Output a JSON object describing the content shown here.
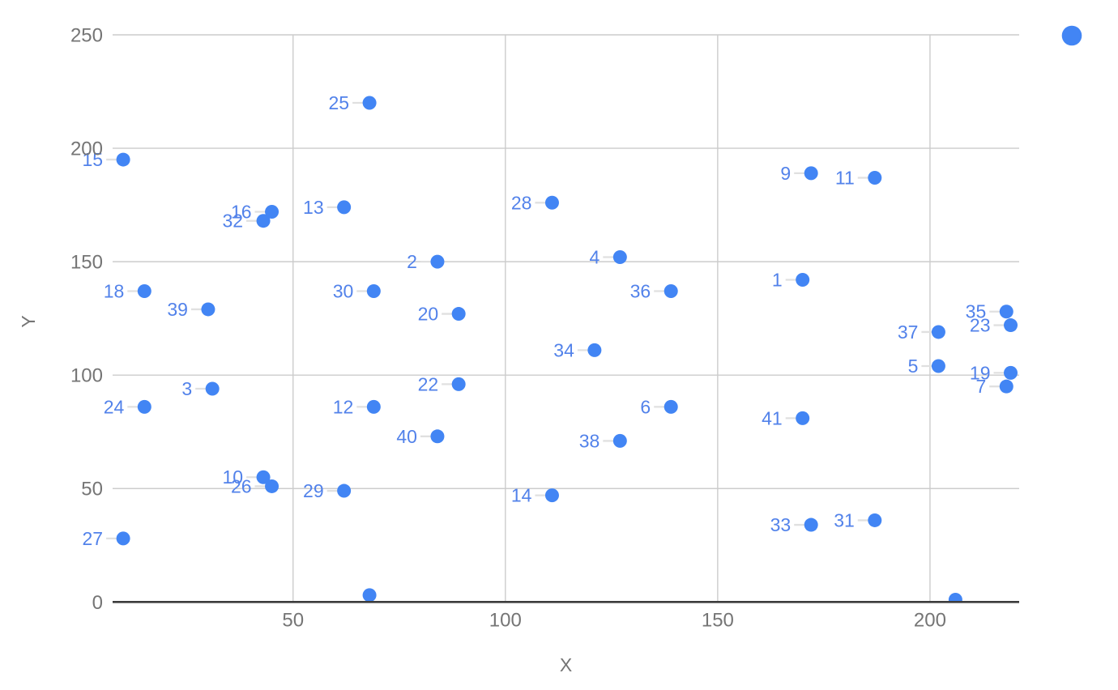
{
  "chart_data": {
    "type": "scatter",
    "title": "",
    "xlabel": "X",
    "ylabel": "Y",
    "grid": true,
    "legend_position": "top-right",
    "legend_marker": "circle",
    "x_range": [
      7.5,
      221
    ],
    "y_range": [
      0,
      250
    ],
    "x_tick_values": [
      50,
      100,
      150,
      200
    ],
    "x_tick_labels": [
      "50",
      "100",
      "150",
      "200"
    ],
    "y_tick_values": [
      0,
      50,
      100,
      150,
      200,
      250
    ],
    "y_tick_labels": [
      "0",
      "50",
      "100",
      "150",
      "200",
      "250"
    ],
    "points": [
      {
        "label": "1",
        "x": 170,
        "y": 142
      },
      {
        "label": "2",
        "x": 84,
        "y": 150
      },
      {
        "label": "3",
        "x": 31,
        "y": 94
      },
      {
        "label": "4",
        "x": 127,
        "y": 152
      },
      {
        "label": "5",
        "x": 202,
        "y": 104
      },
      {
        "label": "6",
        "x": 139,
        "y": 86
      },
      {
        "label": "7",
        "x": 218,
        "y": 95
      },
      {
        "label": "9",
        "x": 172,
        "y": 189
      },
      {
        "label": "10",
        "x": 43,
        "y": 55
      },
      {
        "label": "11",
        "x": 187,
        "y": 187
      },
      {
        "label": "12",
        "x": 69,
        "y": 86
      },
      {
        "label": "13",
        "x": 62,
        "y": 174
      },
      {
        "label": "14",
        "x": 111,
        "y": 47
      },
      {
        "label": "15",
        "x": 10,
        "y": 195
      },
      {
        "label": "16",
        "x": 45,
        "y": 172
      },
      {
        "label": "18",
        "x": 15,
        "y": 137
      },
      {
        "label": "19",
        "x": 219,
        "y": 101
      },
      {
        "label": "20",
        "x": 89,
        "y": 127
      },
      {
        "label": "22",
        "x": 89,
        "y": 96
      },
      {
        "label": "23",
        "x": 219,
        "y": 122
      },
      {
        "label": "24",
        "x": 15,
        "y": 86
      },
      {
        "label": "25",
        "x": 68,
        "y": 220
      },
      {
        "label": "26",
        "x": 45,
        "y": 51
      },
      {
        "label": "27",
        "x": 10,
        "y": 28
      },
      {
        "label": "28",
        "x": 111,
        "y": 176
      },
      {
        "label": "29",
        "x": 62,
        "y": 49
      },
      {
        "label": "30",
        "x": 69,
        "y": 137
      },
      {
        "label": "31",
        "x": 187,
        "y": 36
      },
      {
        "label": "32",
        "x": 43,
        "y": 168
      },
      {
        "label": "33",
        "x": 172,
        "y": 34
      },
      {
        "label": "34",
        "x": 121,
        "y": 111
      },
      {
        "label": "35",
        "x": 218,
        "y": 128
      },
      {
        "label": "36",
        "x": 139,
        "y": 137
      },
      {
        "label": "37",
        "x": 202,
        "y": 119
      },
      {
        "label": "38",
        "x": 127,
        "y": 71
      },
      {
        "label": "39",
        "x": 30,
        "y": 129
      },
      {
        "label": "40",
        "x": 84,
        "y": 73
      },
      {
        "label": "41",
        "x": 170,
        "y": 81
      },
      {
        "label": "",
        "x": 68,
        "y": 3
      },
      {
        "label": "",
        "x": 206,
        "y": 1
      }
    ]
  },
  "colors": {
    "background": "#ffffff",
    "point": "#4285f4",
    "point_label": "#5282ea",
    "leader_line": "#e0e0e0",
    "gridline": "#cccccc",
    "axis_line": "#3c3c3c",
    "tick_label": "#757575",
    "axis_title": "#757575",
    "legend_marker": "#4285f4"
  }
}
